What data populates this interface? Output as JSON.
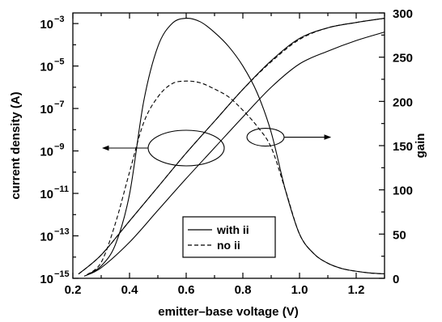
{
  "chart_data": {
    "type": "line",
    "xlabel": "emitter–base voltage (V)",
    "ylabel_left": "current density (A)",
    "ylabel_right": "gain",
    "x_range": [
      0.2,
      1.3
    ],
    "x_ticks": [
      0.2,
      0.4,
      0.6,
      0.8,
      1.0,
      1.2
    ],
    "x_tick_labels": [
      "0.2",
      "0.4",
      "0.6",
      "0.8",
      "1.0",
      "1.2"
    ],
    "left_axis": {
      "scale": "log",
      "range_exp": [
        -15,
        -2.5
      ],
      "tick_exps": [
        -15,
        -13,
        -11,
        -9,
        -7,
        -5,
        -3
      ],
      "tick_labels": [
        {
          "base": "10",
          "exp": "−15"
        },
        {
          "base": "10",
          "exp": "−13"
        },
        {
          "base": "10",
          "exp": "−11"
        },
        {
          "base": "10",
          "exp": "−9"
        },
        {
          "base": "10",
          "exp": "−7"
        },
        {
          "base": "10",
          "exp": "−5"
        },
        {
          "base": "10",
          "exp": "−3"
        }
      ]
    },
    "right_axis": {
      "scale": "linear",
      "range": [
        0,
        300
      ],
      "ticks": [
        0,
        50,
        100,
        150,
        200,
        250,
        300
      ],
      "tick_labels": [
        "0",
        "50",
        "100",
        "150",
        "200",
        "250",
        "300"
      ]
    },
    "legend": {
      "position": "lower-center",
      "entries": [
        {
          "label": "with ii",
          "style": "solid"
        },
        {
          "label": "no ii",
          "style": "dashed"
        }
      ]
    },
    "series": [
      {
        "name": "with ii",
        "quantity": "collector current",
        "axis": "left",
        "style": "solid",
        "x": [
          0.22,
          0.3,
          0.4,
          0.5,
          0.6,
          0.7,
          0.8,
          0.9,
          1.0,
          1.1,
          1.2,
          1.3
        ],
        "log10_y": [
          -14.8,
          -13.9,
          -12.3,
          -10.7,
          -9.1,
          -7.6,
          -6.1,
          -4.75,
          -3.7,
          -3.2,
          -2.95,
          -2.75
        ]
      },
      {
        "name": "no ii",
        "quantity": "collector current",
        "axis": "left",
        "style": "dashed",
        "x": [
          0.22,
          0.3,
          0.4,
          0.5,
          0.6,
          0.7,
          0.8,
          0.9,
          1.0,
          1.1,
          1.2,
          1.3
        ],
        "log10_y": [
          -14.8,
          -13.9,
          -12.3,
          -10.7,
          -9.1,
          -7.6,
          -6.1,
          -4.8,
          -3.75,
          -3.2,
          -2.95,
          -2.75
        ]
      },
      {
        "name": "with ii",
        "quantity": "base current",
        "axis": "left",
        "style": "solid",
        "x": [
          0.24,
          0.3,
          0.4,
          0.5,
          0.6,
          0.7,
          0.8,
          0.9,
          1.0,
          1.1,
          1.2,
          1.3
        ],
        "log10_y": [
          -14.9,
          -14.5,
          -13.3,
          -11.8,
          -10.3,
          -8.85,
          -7.4,
          -6.0,
          -4.9,
          -4.3,
          -3.8,
          -3.4
        ]
      },
      {
        "name": "with ii",
        "quantity": "gain",
        "axis": "right",
        "style": "solid",
        "x": [
          0.25,
          0.3,
          0.35,
          0.4,
          0.45,
          0.5,
          0.55,
          0.6,
          0.65,
          0.7,
          0.75,
          0.8,
          0.85,
          0.9,
          0.95,
          1.0,
          1.05,
          1.1,
          1.15,
          1.2,
          1.25,
          1.3
        ],
        "y": [
          4,
          14,
          38,
          95,
          200,
          262,
          288,
          294,
          290,
          278,
          262,
          240,
          210,
          165,
          100,
          50,
          28,
          17,
          11,
          8,
          6,
          5
        ]
      },
      {
        "name": "no ii",
        "quantity": "gain",
        "axis": "right",
        "style": "dashed",
        "x": [
          0.25,
          0.3,
          0.35,
          0.4,
          0.45,
          0.5,
          0.55,
          0.6,
          0.65,
          0.7,
          0.75,
          0.8,
          0.85,
          0.9,
          0.95,
          1.0,
          1.05,
          1.1,
          1.15,
          1.2,
          1.25,
          1.3
        ],
        "y": [
          4,
          18,
          62,
          120,
          176,
          205,
          220,
          223,
          221,
          214,
          205,
          190,
          172,
          148,
          100,
          50,
          28,
          17,
          11,
          8,
          6,
          5
        ]
      }
    ],
    "annotations": [
      {
        "kind": "ellipse-arrow",
        "points_to": "left axis",
        "encloses_x": 0.6,
        "encloses_gain": 150
      },
      {
        "kind": "ellipse-arrow",
        "points_to": "right axis",
        "encloses_x": 0.88,
        "encloses_gain": 155
      }
    ]
  }
}
